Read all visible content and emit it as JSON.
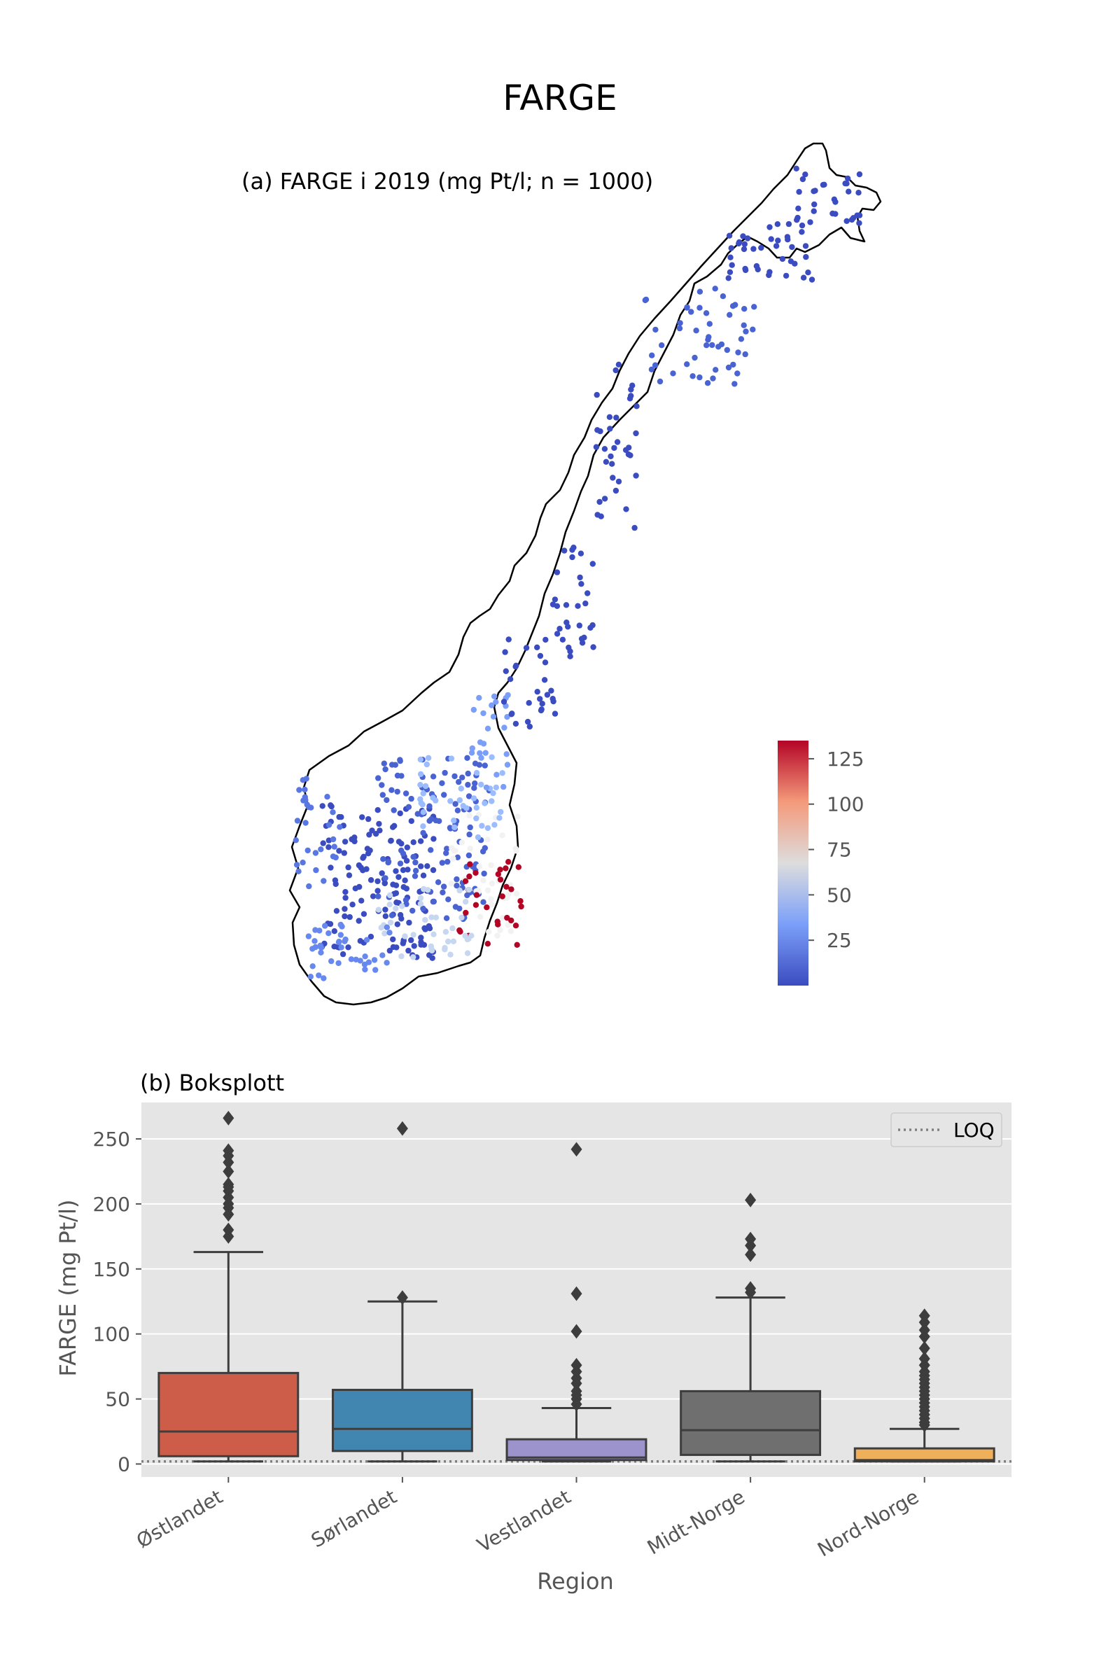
{
  "figure": {
    "title": "FARGE"
  },
  "map_panel": {
    "title": "(a) FARGE i 2019 (mg Pt/l; n = 1000)",
    "colorbar": {
      "ticks": [
        25,
        50,
        75,
        100,
        125
      ],
      "range": [
        0,
        135
      ],
      "colormap": "coolwarm",
      "low_color": "#3b4cc0",
      "mid_color": "#dddddd",
      "high_color": "#b40426"
    }
  },
  "box_panel": {
    "title": "(b) Boksplott",
    "legend": {
      "label": "LOQ"
    }
  },
  "chart_data": {
    "type": "box",
    "title": "(b) Boksplott",
    "xlabel": "Region",
    "ylabel": "FARGE (mg Pt/l)",
    "ylim": [
      -10,
      278
    ],
    "yticks": [
      0,
      50,
      100,
      150,
      200,
      250
    ],
    "grid": true,
    "legend_placement": "top-right",
    "loq": 2,
    "categories": [
      "Østlandet",
      "Sørlandet",
      "Vestlandet",
      "Midt-Norge",
      "Nord-Norge"
    ],
    "colors": [
      "#cd5c48",
      "#4186b0",
      "#9c93cc",
      "#6f6f6f",
      "#f0b05a"
    ],
    "boxes": [
      {
        "whisker_low": 2,
        "q1": 6,
        "median": 25,
        "q3": 70,
        "whisker_high": 163,
        "outliers": [
          175,
          180,
          192,
          197,
          200,
          205,
          210,
          213,
          215,
          225,
          232,
          237,
          241,
          266
        ]
      },
      {
        "whisker_low": 2,
        "q1": 10,
        "median": 27,
        "q3": 57,
        "whisker_high": 125,
        "outliers": [
          128,
          258
        ]
      },
      {
        "whisker_low": 2,
        "q1": 3,
        "median": 5,
        "q3": 19,
        "whisker_high": 43,
        "outliers": [
          46,
          50,
          53,
          56,
          62,
          66,
          71,
          76,
          102,
          131,
          242
        ]
      },
      {
        "whisker_low": 2,
        "q1": 7,
        "median": 26,
        "q3": 56,
        "whisker_high": 128,
        "outliers": [
          132,
          135,
          161,
          168,
          173,
          203
        ]
      },
      {
        "whisker_low": 2,
        "q1": 2,
        "median": 3,
        "q3": 12,
        "whisker_high": 27,
        "outliers": [
          30,
          32,
          35,
          38,
          41,
          44,
          47,
          50,
          53,
          56,
          59,
          62,
          65,
          68,
          71,
          76,
          81,
          89,
          98,
          103,
          109,
          114
        ]
      }
    ]
  }
}
